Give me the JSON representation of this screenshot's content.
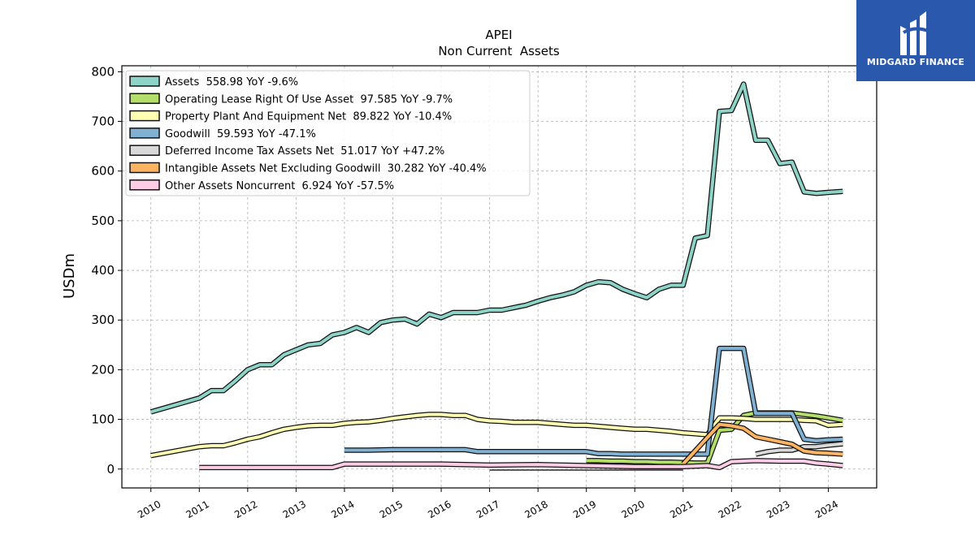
{
  "brand": {
    "name": "MIDGARD FINANCE",
    "bg": "#2a58ad"
  },
  "chart_data": {
    "type": "line",
    "title": "APEI",
    "subtitle": "Non Current  Assets",
    "ylabel": "USDm",
    "xlabel": "",
    "xlim": [
      2009.4,
      2025.0
    ],
    "ylim": [
      -38,
      812
    ],
    "yticks": [
      0,
      100,
      200,
      300,
      400,
      500,
      600,
      700,
      800
    ],
    "xticks": [
      2010,
      2011,
      2012,
      2013,
      2014,
      2015,
      2016,
      2017,
      2018,
      2019,
      2020,
      2021,
      2022,
      2023,
      2024
    ],
    "grid": true,
    "legend_position": "top-left",
    "series": [
      {
        "name": "Assets",
        "legend": "Assets  558.98 YoY -9.6%",
        "color": "#8dd3c7",
        "x": [
          2010.0,
          2011.0,
          2011.25,
          2011.5,
          2011.75,
          2012.0,
          2012.25,
          2012.5,
          2012.75,
          2013.0,
          2013.25,
          2013.5,
          2013.75,
          2014.0,
          2014.25,
          2014.5,
          2014.75,
          2015.0,
          2015.25,
          2015.5,
          2015.75,
          2016.0,
          2016.25,
          2016.5,
          2016.75,
          2017.0,
          2017.25,
          2017.5,
          2017.75,
          2018.0,
          2018.25,
          2018.5,
          2018.75,
          2019.0,
          2019.25,
          2019.5,
          2019.75,
          2020.0,
          2020.25,
          2020.5,
          2020.75,
          2021.0,
          2021.25,
          2021.5,
          2021.75,
          2022.0,
          2022.25,
          2022.5,
          2022.75,
          2023.0,
          2023.25,
          2023.5,
          2023.75,
          2024.0,
          2024.3
        ],
        "y": [
          115,
          143,
          158,
          158,
          178,
          200,
          210,
          210,
          230,
          240,
          250,
          253,
          270,
          275,
          285,
          275,
          295,
          300,
          302,
          292,
          312,
          305,
          315,
          315,
          315,
          320,
          320,
          325,
          330,
          338,
          345,
          350,
          357,
          370,
          377,
          375,
          362,
          353,
          345,
          362,
          370,
          370,
          465,
          470,
          720,
          722,
          775,
          662,
          662,
          615,
          618,
          558,
          555,
          557,
          559
        ]
      },
      {
        "name": "Operating Lease Right Of Use Asset",
        "legend": "Operating Lease Right Of Use Asset  97.585 YoY -9.7%",
        "color": "#b3de69",
        "x": [
          2019.0,
          2019.25,
          2019.5,
          2019.75,
          2020.0,
          2020.25,
          2020.5,
          2020.75,
          2021.0,
          2021.25,
          2021.5,
          2021.75,
          2022.0,
          2022.25,
          2022.5,
          2022.75,
          2023.0,
          2023.25,
          2023.5,
          2023.75,
          2024.0,
          2024.3
        ],
        "y": [
          17,
          17,
          16,
          16,
          15,
          15,
          14,
          14,
          13,
          12,
          12,
          78,
          80,
          108,
          113,
          113,
          113,
          113,
          110,
          107,
          103,
          98
        ]
      },
      {
        "name": "Property Plant And Equipment Net",
        "legend": "Property Plant And Equipment Net  89.822 YoY -10.4%",
        "color": "#ffffb3",
        "x": [
          2010.0,
          2011.0,
          2011.25,
          2011.5,
          2011.75,
          2012.0,
          2012.25,
          2012.5,
          2012.75,
          2013.0,
          2013.25,
          2013.5,
          2013.75,
          2014.0,
          2014.25,
          2014.5,
          2014.75,
          2015.0,
          2015.25,
          2015.5,
          2015.75,
          2016.0,
          2016.25,
          2016.5,
          2016.75,
          2017.0,
          2017.25,
          2017.5,
          2017.75,
          2018.0,
          2018.25,
          2018.5,
          2018.75,
          2019.0,
          2019.25,
          2019.5,
          2019.75,
          2020.0,
          2020.25,
          2020.5,
          2020.75,
          2021.0,
          2021.25,
          2021.5,
          2021.75,
          2022.0,
          2022.25,
          2022.5,
          2022.75,
          2023.0,
          2023.25,
          2023.5,
          2023.75,
          2024.0,
          2024.3
        ],
        "y": [
          27,
          45,
          47,
          47,
          53,
          60,
          65,
          73,
          80,
          84,
          87,
          88,
          88,
          92,
          94,
          95,
          98,
          102,
          105,
          108,
          110,
          110,
          108,
          108,
          100,
          97,
          96,
          94,
          94,
          94,
          92,
          90,
          88,
          88,
          86,
          84,
          82,
          80,
          80,
          78,
          76,
          73,
          71,
          69,
          103,
          103,
          102,
          100,
          100,
          100,
          100,
          98,
          97,
          88,
          90
        ]
      },
      {
        "name": "Goodwill",
        "legend": "Goodwill  59.593 YoY -47.1%",
        "color": "#80b1d3",
        "x": [
          2014.0,
          2014.5,
          2015.0,
          2015.5,
          2016.0,
          2016.5,
          2016.75,
          2017.0,
          2017.5,
          2018.0,
          2018.5,
          2019.0,
          2019.25,
          2019.5,
          2019.75,
          2020.0,
          2020.5,
          2021.0,
          2021.25,
          2021.5,
          2021.75,
          2022.0,
          2022.25,
          2022.5,
          2022.75,
          2023.0,
          2023.25,
          2023.5,
          2023.75,
          2024.0,
          2024.3
        ],
        "y": [
          38,
          38,
          39,
          39,
          39,
          39,
          35,
          35,
          35,
          35,
          35,
          35,
          31,
          31,
          30,
          30,
          30,
          30,
          30,
          30,
          243,
          243,
          243,
          112,
          112,
          112,
          112,
          60,
          57,
          59,
          60
        ]
      },
      {
        "name": "Deferred Income Tax Assets Net",
        "legend": "Deferred Income Tax Assets Net  51.017 YoY +47.2%",
        "color": "#d9d9d9",
        "x": [
          2022.5,
          2022.75,
          2023.0,
          2023.25,
          2023.5,
          2023.75,
          2024.0,
          2024.3
        ],
        "y": [
          30,
          35,
          38,
          38,
          45,
          45,
          48,
          51
        ]
      },
      {
        "name": "Intangible Assets Net Excluding Goodwill",
        "legend": "Intangible Assets Net Excluding Goodwill  30.282 YoY -40.4%",
        "color": "#fdb462",
        "x": [
          2021.0,
          2021.75,
          2022.0,
          2022.25,
          2022.5,
          2022.75,
          2023.0,
          2023.25,
          2023.5,
          2023.75,
          2024.0,
          2024.3
        ],
        "y": [
          10,
          90,
          87,
          82,
          65,
          60,
          55,
          50,
          36,
          33,
          32,
          30
        ]
      },
      {
        "name": "Other Assets Noncurrent",
        "legend": "Other Assets Noncurrent  6.924 YoY -57.5%",
        "color": "#fccde5",
        "x": [
          2011.0,
          2012.0,
          2013.0,
          2013.75,
          2014.0,
          2015.0,
          2016.0,
          2017.0,
          2018.0,
          2019.0,
          2020.0,
          2021.0,
          2021.5,
          2021.75,
          2022.0,
          2022.5,
          2023.0,
          2023.5,
          2023.75,
          2024.0,
          2024.3
        ],
        "y": [
          3,
          3,
          3,
          3,
          10,
          10,
          10,
          8,
          9,
          7,
          5,
          5,
          7,
          3,
          15,
          17,
          16,
          16,
          12,
          10,
          7
        ]
      },
      {
        "name": "",
        "legend": "",
        "color": "#2a2a2a",
        "thin": true,
        "x": [
          2017.0,
          2019.0,
          2020.0,
          2021.0
        ],
        "y": [
          -2,
          -2,
          -2,
          -2
        ]
      }
    ]
  }
}
